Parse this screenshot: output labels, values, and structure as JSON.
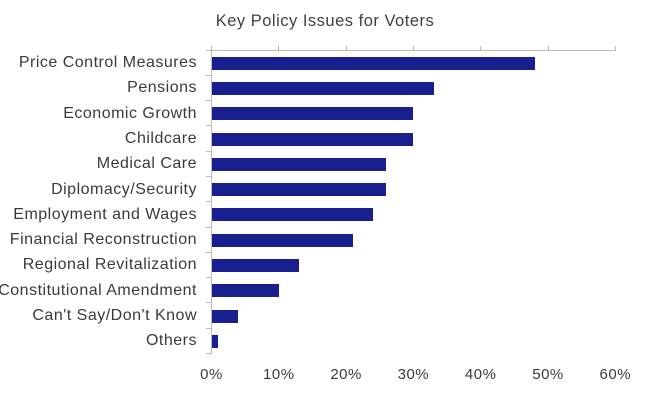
{
  "chart_data": {
    "type": "bar",
    "orientation": "horizontal",
    "title": "Key Policy Issues for Voters",
    "categories": [
      "Price Control Measures",
      "Pensions",
      "Economic Growth",
      "Childcare",
      "Medical Care",
      "Diplomacy/Security",
      "Employment and Wages",
      "Financial Reconstruction",
      "Regional Revitalization",
      "Constitutional Amendment",
      "Can't Say/Don't Know",
      "Others"
    ],
    "values": [
      48,
      33,
      30,
      30,
      26,
      26,
      24,
      21,
      13,
      10,
      4,
      1
    ],
    "unit": "%",
    "xlabel": "",
    "ylabel": "",
    "xlim": [
      0,
      60
    ],
    "x_tick_step": 10,
    "x_tick_labels": [
      "0%",
      "10%",
      "20%",
      "30%",
      "40%",
      "50%",
      "60%"
    ],
    "grid": false,
    "legend": "none",
    "bar_color": "#1A1F8F",
    "axis_color": "#BBBBBB",
    "text_color": "#3A3A3A",
    "background_color": "#FFFFFF"
  }
}
